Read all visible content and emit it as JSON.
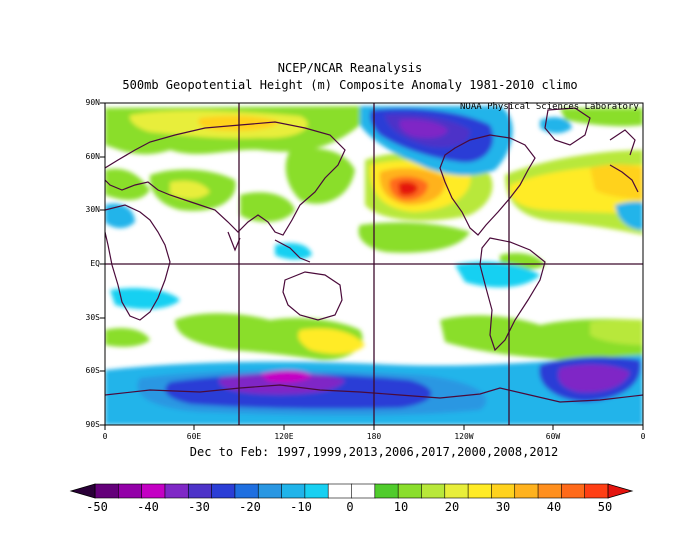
{
  "title": {
    "line1": "NCEP/NCAR Reanalysis",
    "line2": "500mb Geopotential Height (m) Composite Anomaly 1981-2010 climo"
  },
  "credit": "NOAA Physical Sciences Laboratory",
  "axes": {
    "y_labels": [
      "90N",
      "60N",
      "30N",
      "EQ",
      "30S",
      "60S",
      "90S"
    ],
    "x_labels": [
      "0",
      "60E",
      "120E",
      "180",
      "120W",
      "60W",
      "0"
    ]
  },
  "season": "Dec to Feb: 1997,1999,2013,2006,2017,2000,2008,2012",
  "colorbar": {
    "labels": [
      "-50",
      "-40",
      "-30",
      "-20",
      "-10",
      "0",
      "10",
      "20",
      "30",
      "40",
      "50"
    ],
    "colors": [
      "#2a0038",
      "#64007a",
      "#9300a8",
      "#c400c4",
      "#7f28c6",
      "#4d33c8",
      "#2b3ed6",
      "#1f6fe0",
      "#2a97e2",
      "#20b4ea",
      "#18d0f2",
      "#ffffff",
      "#ffffff",
      "#50cc2c",
      "#8ade2c",
      "#b8e83a",
      "#e8ee3a",
      "#ffeb26",
      "#ffd21e",
      "#ffb21e",
      "#ff8f1e",
      "#ff6a1a",
      "#ff3f14",
      "#e4140e"
    ]
  },
  "map": {
    "background": "#ffffff",
    "coast_color": "#4a0a3a",
    "grid_color": "#3c0a2c"
  }
}
